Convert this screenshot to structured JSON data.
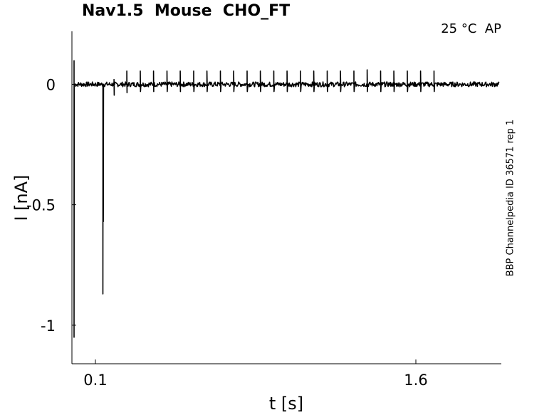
{
  "chart_data": {
    "type": "line",
    "title": "Nav1.5  Mouse  CHO_FT",
    "condition": "25 °C  AP",
    "source_note": "BBP Channelpedia ID 36571 rep 1",
    "xlabel": "t [s]",
    "ylabel": "I [nA]",
    "xlim": [
      -0.01,
      2.0
    ],
    "ylim": [
      -1.16,
      0.22
    ],
    "x_ticks": [
      0.1,
      1.6
    ],
    "x_tick_labels": [
      "0.1",
      "1.6"
    ],
    "y_ticks": [
      0,
      -0.5,
      -1
    ],
    "y_tick_labels": [
      "0",
      "-0.5",
      "-1"
    ],
    "grid": false,
    "series": [
      {
        "color": "#000000",
        "baseline": 0.0,
        "initial_transient": {
          "t": 0.0,
          "min": -1.05,
          "max": 0.1
        },
        "main_spike": {
          "t": 0.135,
          "peak": -0.87
        },
        "events": [
          {
            "t": 0.187,
            "up": 0.02,
            "down": -0.045
          },
          {
            "t": 0.247,
            "up": 0.055,
            "down": -0.035
          },
          {
            "t": 0.31,
            "up": 0.055,
            "down": -0.03
          },
          {
            "t": 0.372,
            "up": 0.055,
            "down": -0.03
          },
          {
            "t": 0.435,
            "up": 0.055,
            "down": -0.03
          },
          {
            "t": 0.497,
            "up": 0.055,
            "down": -0.03
          },
          {
            "t": 0.56,
            "up": 0.055,
            "down": -0.03
          },
          {
            "t": 0.622,
            "up": 0.055,
            "down": -0.03
          },
          {
            "t": 0.685,
            "up": 0.055,
            "down": -0.03
          },
          {
            "t": 0.747,
            "up": 0.055,
            "down": -0.03
          },
          {
            "t": 0.81,
            "up": 0.055,
            "down": -0.03
          },
          {
            "t": 0.872,
            "up": 0.055,
            "down": -0.03
          },
          {
            "t": 0.935,
            "up": 0.055,
            "down": -0.03
          },
          {
            "t": 0.997,
            "up": 0.055,
            "down": -0.03
          },
          {
            "t": 1.06,
            "up": 0.055,
            "down": -0.03
          },
          {
            "t": 1.122,
            "up": 0.055,
            "down": -0.03
          },
          {
            "t": 1.185,
            "up": 0.055,
            "down": -0.03
          },
          {
            "t": 1.247,
            "up": 0.055,
            "down": -0.03
          },
          {
            "t": 1.31,
            "up": 0.055,
            "down": -0.03
          },
          {
            "t": 1.372,
            "up": 0.06,
            "down": -0.03
          },
          {
            "t": 1.435,
            "up": 0.055,
            "down": -0.03
          },
          {
            "t": 1.497,
            "up": 0.055,
            "down": -0.03
          },
          {
            "t": 1.56,
            "up": 0.055,
            "down": -0.03
          },
          {
            "t": 1.622,
            "up": 0.055,
            "down": -0.03
          },
          {
            "t": 1.685,
            "up": 0.055,
            "down": -0.03
          }
        ]
      }
    ]
  }
}
